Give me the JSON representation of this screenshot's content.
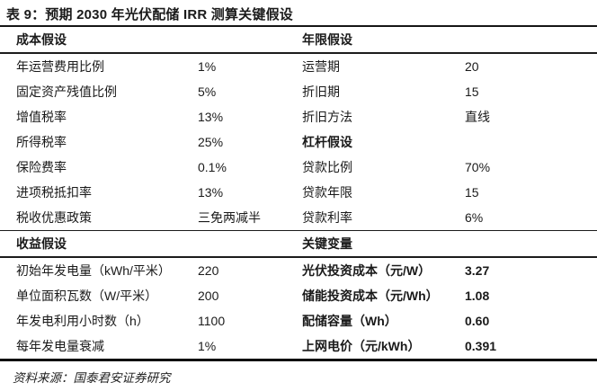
{
  "title": "表 9：预期 2030 年光伏配储 IRR 测算关键假设",
  "columns": {
    "left": {
      "cost": {
        "header": "成本假设",
        "rows": [
          {
            "label": "年运营费用比例",
            "value": "1%"
          },
          {
            "label": "固定资产残值比例",
            "value": "5%"
          },
          {
            "label": "增值税率",
            "value": "13%"
          },
          {
            "label": "所得税率",
            "value": "25%"
          },
          {
            "label": "保险费率",
            "value": "0.1%"
          },
          {
            "label": "进项税抵扣率",
            "value": "13%"
          },
          {
            "label": "税收优惠政策",
            "value": "三免两减半"
          }
        ]
      },
      "income": {
        "header": "收益假设",
        "rows": [
          {
            "label": "初始年发电量（kWh/平米）",
            "value": "220"
          },
          {
            "label": "单位面积瓦数（W/平米）",
            "value": "200"
          },
          {
            "label": "年发电利用小时数（h）",
            "value": "1100"
          },
          {
            "label": "每年发电量衰减",
            "value": "1%"
          }
        ]
      }
    },
    "right": {
      "life": {
        "header": "年限假设",
        "rows": [
          {
            "label": "运营期",
            "value": "20"
          },
          {
            "label": "折旧期",
            "value": "15"
          },
          {
            "label": "折旧方法",
            "value": "直线"
          },
          {
            "label": "杠杆假设",
            "value": ""
          },
          {
            "label": "贷款比例",
            "value": "70%"
          },
          {
            "label": "贷款年限",
            "value": "15"
          },
          {
            "label": "贷款利率",
            "value": "6%"
          }
        ]
      },
      "key": {
        "header": "关键变量",
        "rows": [
          {
            "label": "光伏投资成本（元/W）",
            "value": "3.27"
          },
          {
            "label": "储能投资成本（元/Wh）",
            "value": "1.08"
          },
          {
            "label": "配储容量（Wh）",
            "value": "0.60"
          },
          {
            "label": "上网电价（元/kWh）",
            "value": "0.391"
          }
        ]
      }
    }
  },
  "source": "资料来源：国泰君安证券研究"
}
